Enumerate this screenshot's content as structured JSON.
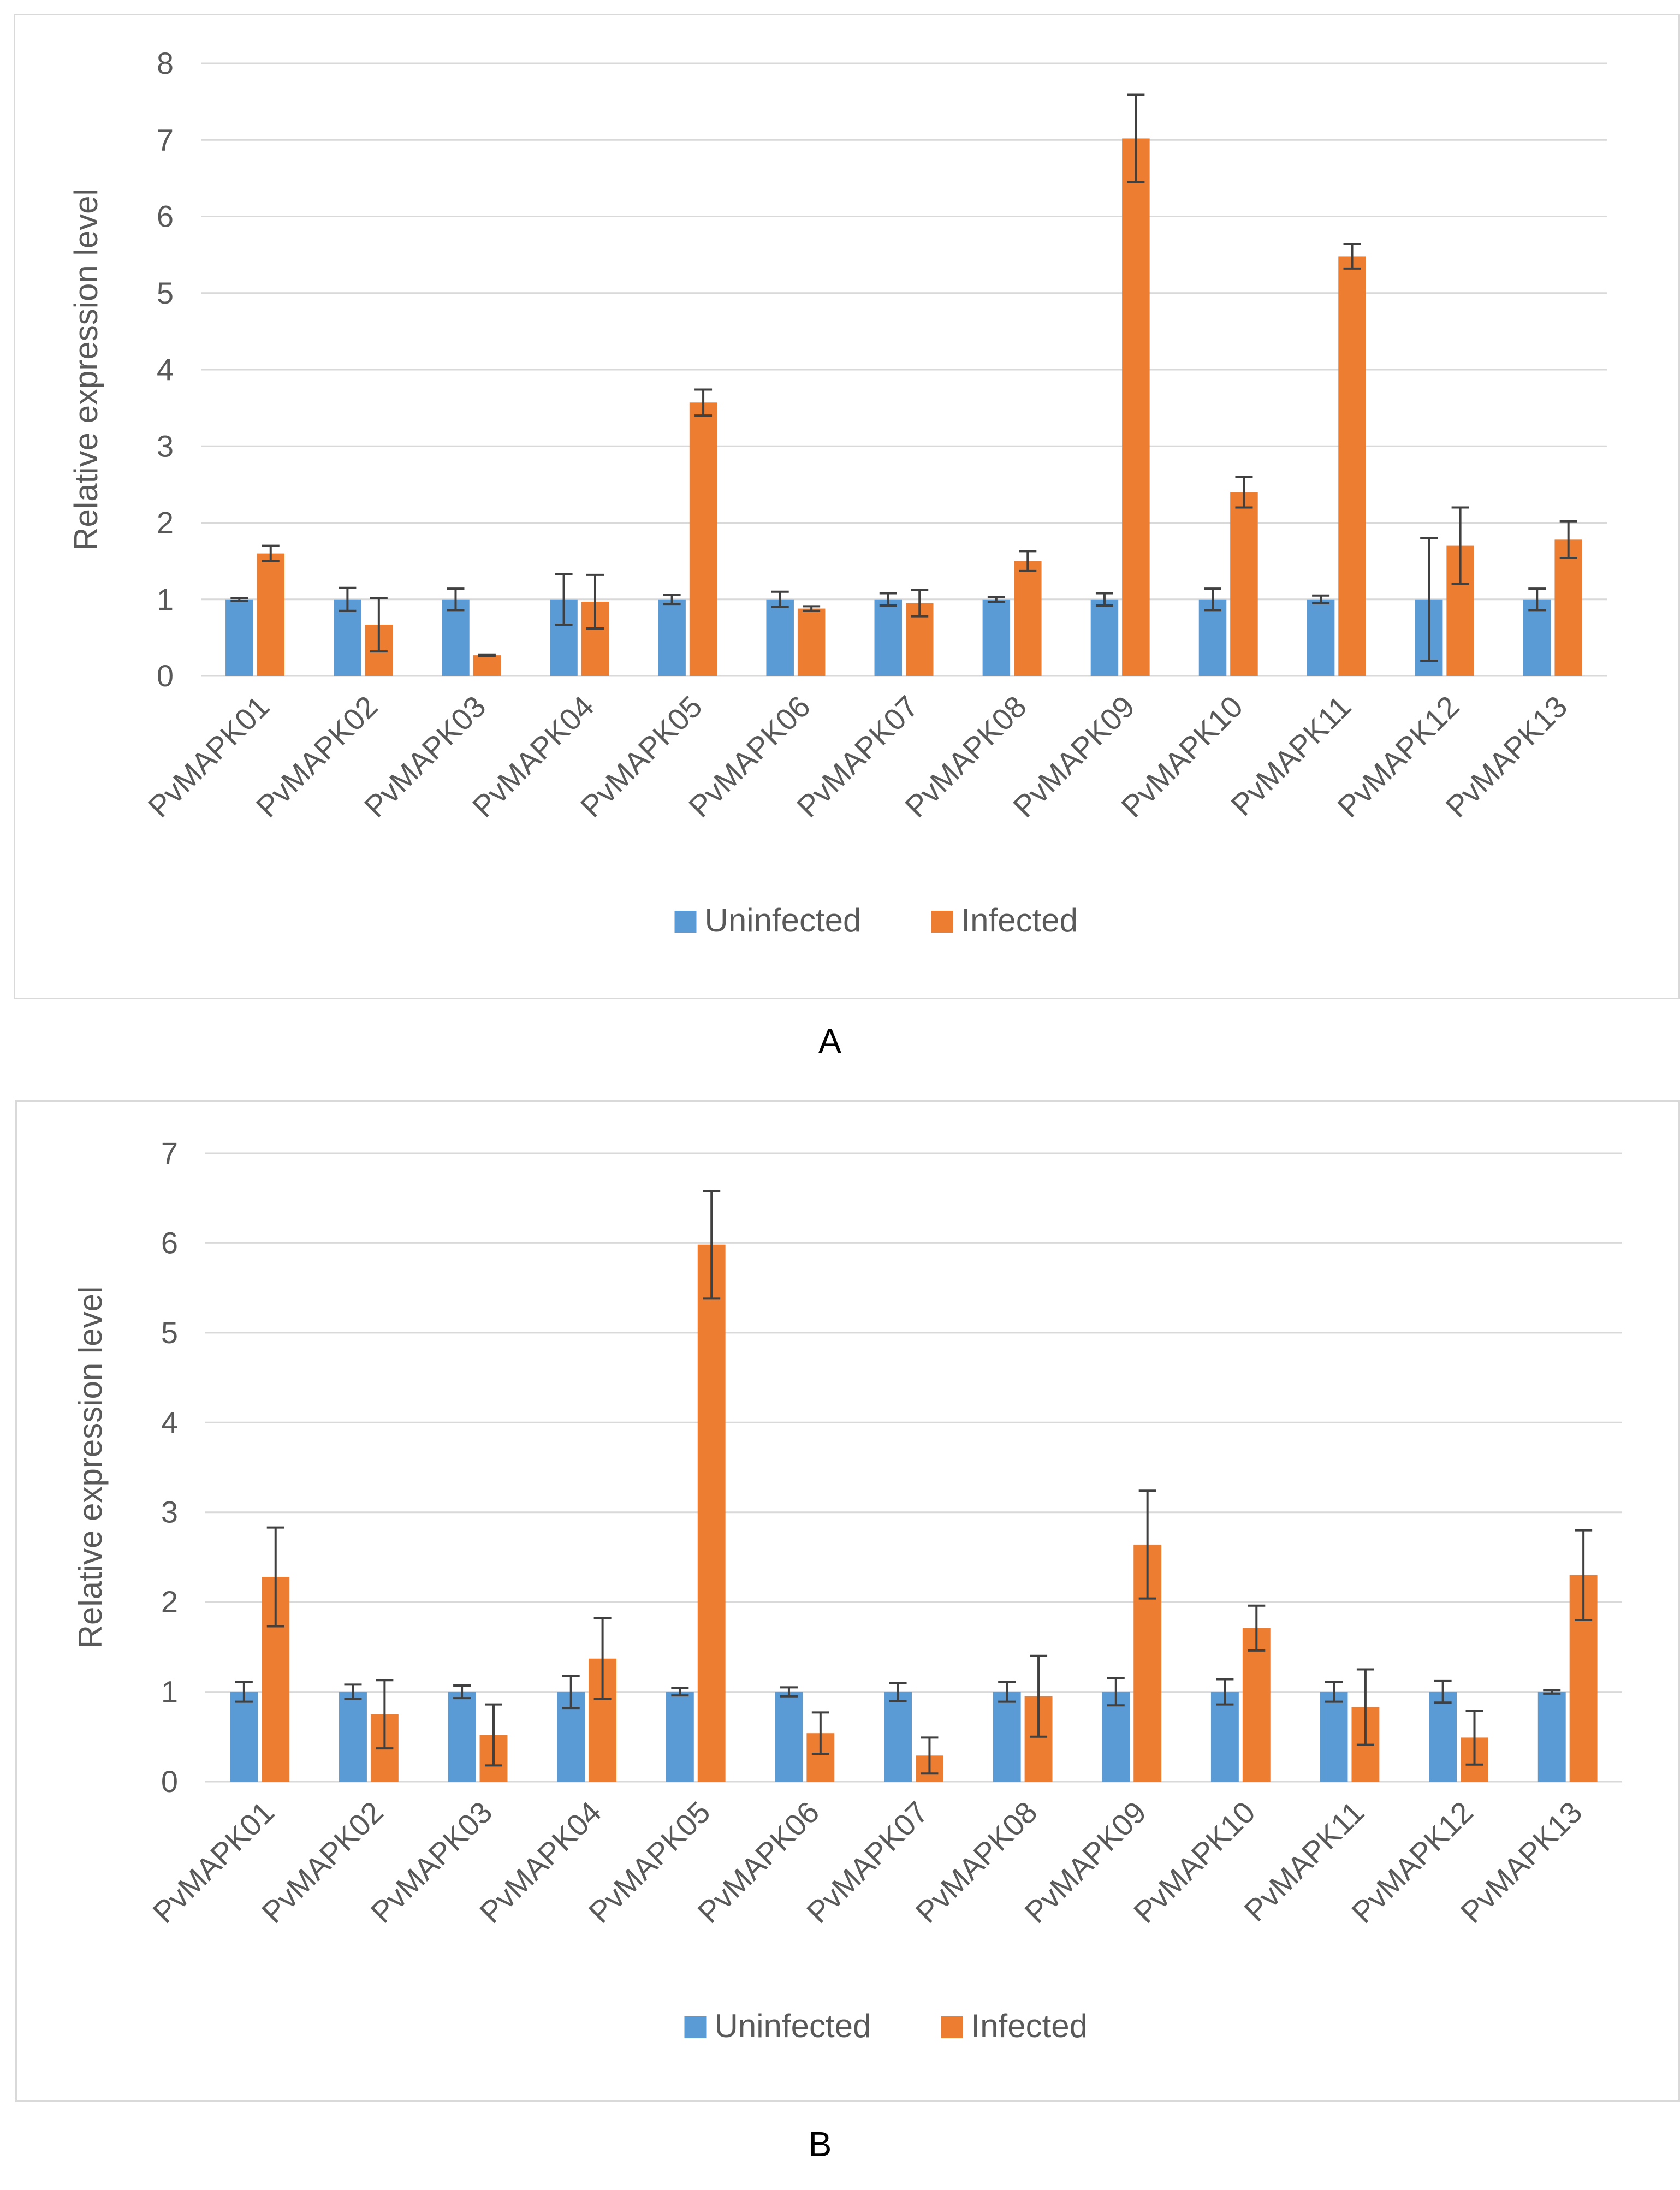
{
  "colors": {
    "uninfected": "#5b9bd5",
    "infected": "#ed7d31",
    "grid": "#d9d9d9",
    "axis_text": "#595959",
    "error_bar": "#404040"
  },
  "panels": [
    {
      "label": "A"
    },
    {
      "label": "B"
    }
  ],
  "chart_data": [
    {
      "type": "bar",
      "title": "",
      "xlabel": "",
      "ylabel": "Relative expression level",
      "ylim": [
        0,
        8
      ],
      "yticks": [
        0,
        1,
        2,
        3,
        4,
        5,
        6,
        7,
        8
      ],
      "grid": true,
      "legend_position": "bottom",
      "categories": [
        "PvMAPK01",
        "PvMAPK02",
        "PvMAPK03",
        "PvMAPK04",
        "PvMAPK05",
        "PvMAPK06",
        "PvMAPK07",
        "PvMAPK08",
        "PvMAPK09",
        "PvMAPK10",
        "PvMAPK11",
        "PvMAPK12",
        "PvMAPK13"
      ],
      "series": [
        {
          "name": "Uninfected",
          "color": "#5b9bd5",
          "values": [
            1.0,
            1.0,
            1.0,
            1.0,
            1.0,
            1.0,
            1.0,
            1.0,
            1.0,
            1.0,
            1.0,
            1.0,
            1.0
          ],
          "errors": [
            0.02,
            0.15,
            0.14,
            0.33,
            0.06,
            0.1,
            0.08,
            0.03,
            0.08,
            0.14,
            0.05,
            0.8,
            0.14
          ]
        },
        {
          "name": "Infected",
          "color": "#ed7d31",
          "values": [
            1.6,
            0.67,
            0.27,
            0.97,
            3.57,
            0.88,
            0.95,
            1.5,
            7.02,
            2.4,
            5.48,
            1.7,
            1.78
          ],
          "errors": [
            0.1,
            0.35,
            0.01,
            0.35,
            0.17,
            0.03,
            0.17,
            0.13,
            0.57,
            0.2,
            0.16,
            0.5,
            0.24
          ]
        }
      ]
    },
    {
      "type": "bar",
      "title": "",
      "xlabel": "",
      "ylabel": "Relative expression level",
      "ylim": [
        0,
        7
      ],
      "yticks": [
        0,
        1,
        2,
        3,
        4,
        5,
        6,
        7
      ],
      "grid": true,
      "legend_position": "bottom",
      "categories": [
        "PvMAPK01",
        "PvMAPK02",
        "PvMAPK03",
        "PvMAPK04",
        "PvMAPK05",
        "PvMAPK06",
        "PvMAPK07",
        "PvMAPK08",
        "PvMAPK09",
        "PvMAPK10",
        "PvMAPK11",
        "PvMAPK12",
        "PvMAPK13"
      ],
      "series": [
        {
          "name": "Uninfected",
          "color": "#5b9bd5",
          "values": [
            1.0,
            1.0,
            1.0,
            1.0,
            1.0,
            1.0,
            1.0,
            1.0,
            1.0,
            1.0,
            1.0,
            1.0,
            1.0
          ],
          "errors": [
            0.11,
            0.08,
            0.07,
            0.18,
            0.04,
            0.05,
            0.1,
            0.11,
            0.15,
            0.14,
            0.11,
            0.12,
            0.02
          ]
        },
        {
          "name": "Infected",
          "color": "#ed7d31",
          "values": [
            2.28,
            0.75,
            0.52,
            1.37,
            5.98,
            0.54,
            0.29,
            0.95,
            2.64,
            1.71,
            0.83,
            0.49,
            2.3
          ],
          "errors": [
            0.55,
            0.38,
            0.34,
            0.45,
            0.6,
            0.23,
            0.2,
            0.45,
            0.6,
            0.25,
            0.42,
            0.3,
            0.5
          ]
        }
      ]
    }
  ]
}
